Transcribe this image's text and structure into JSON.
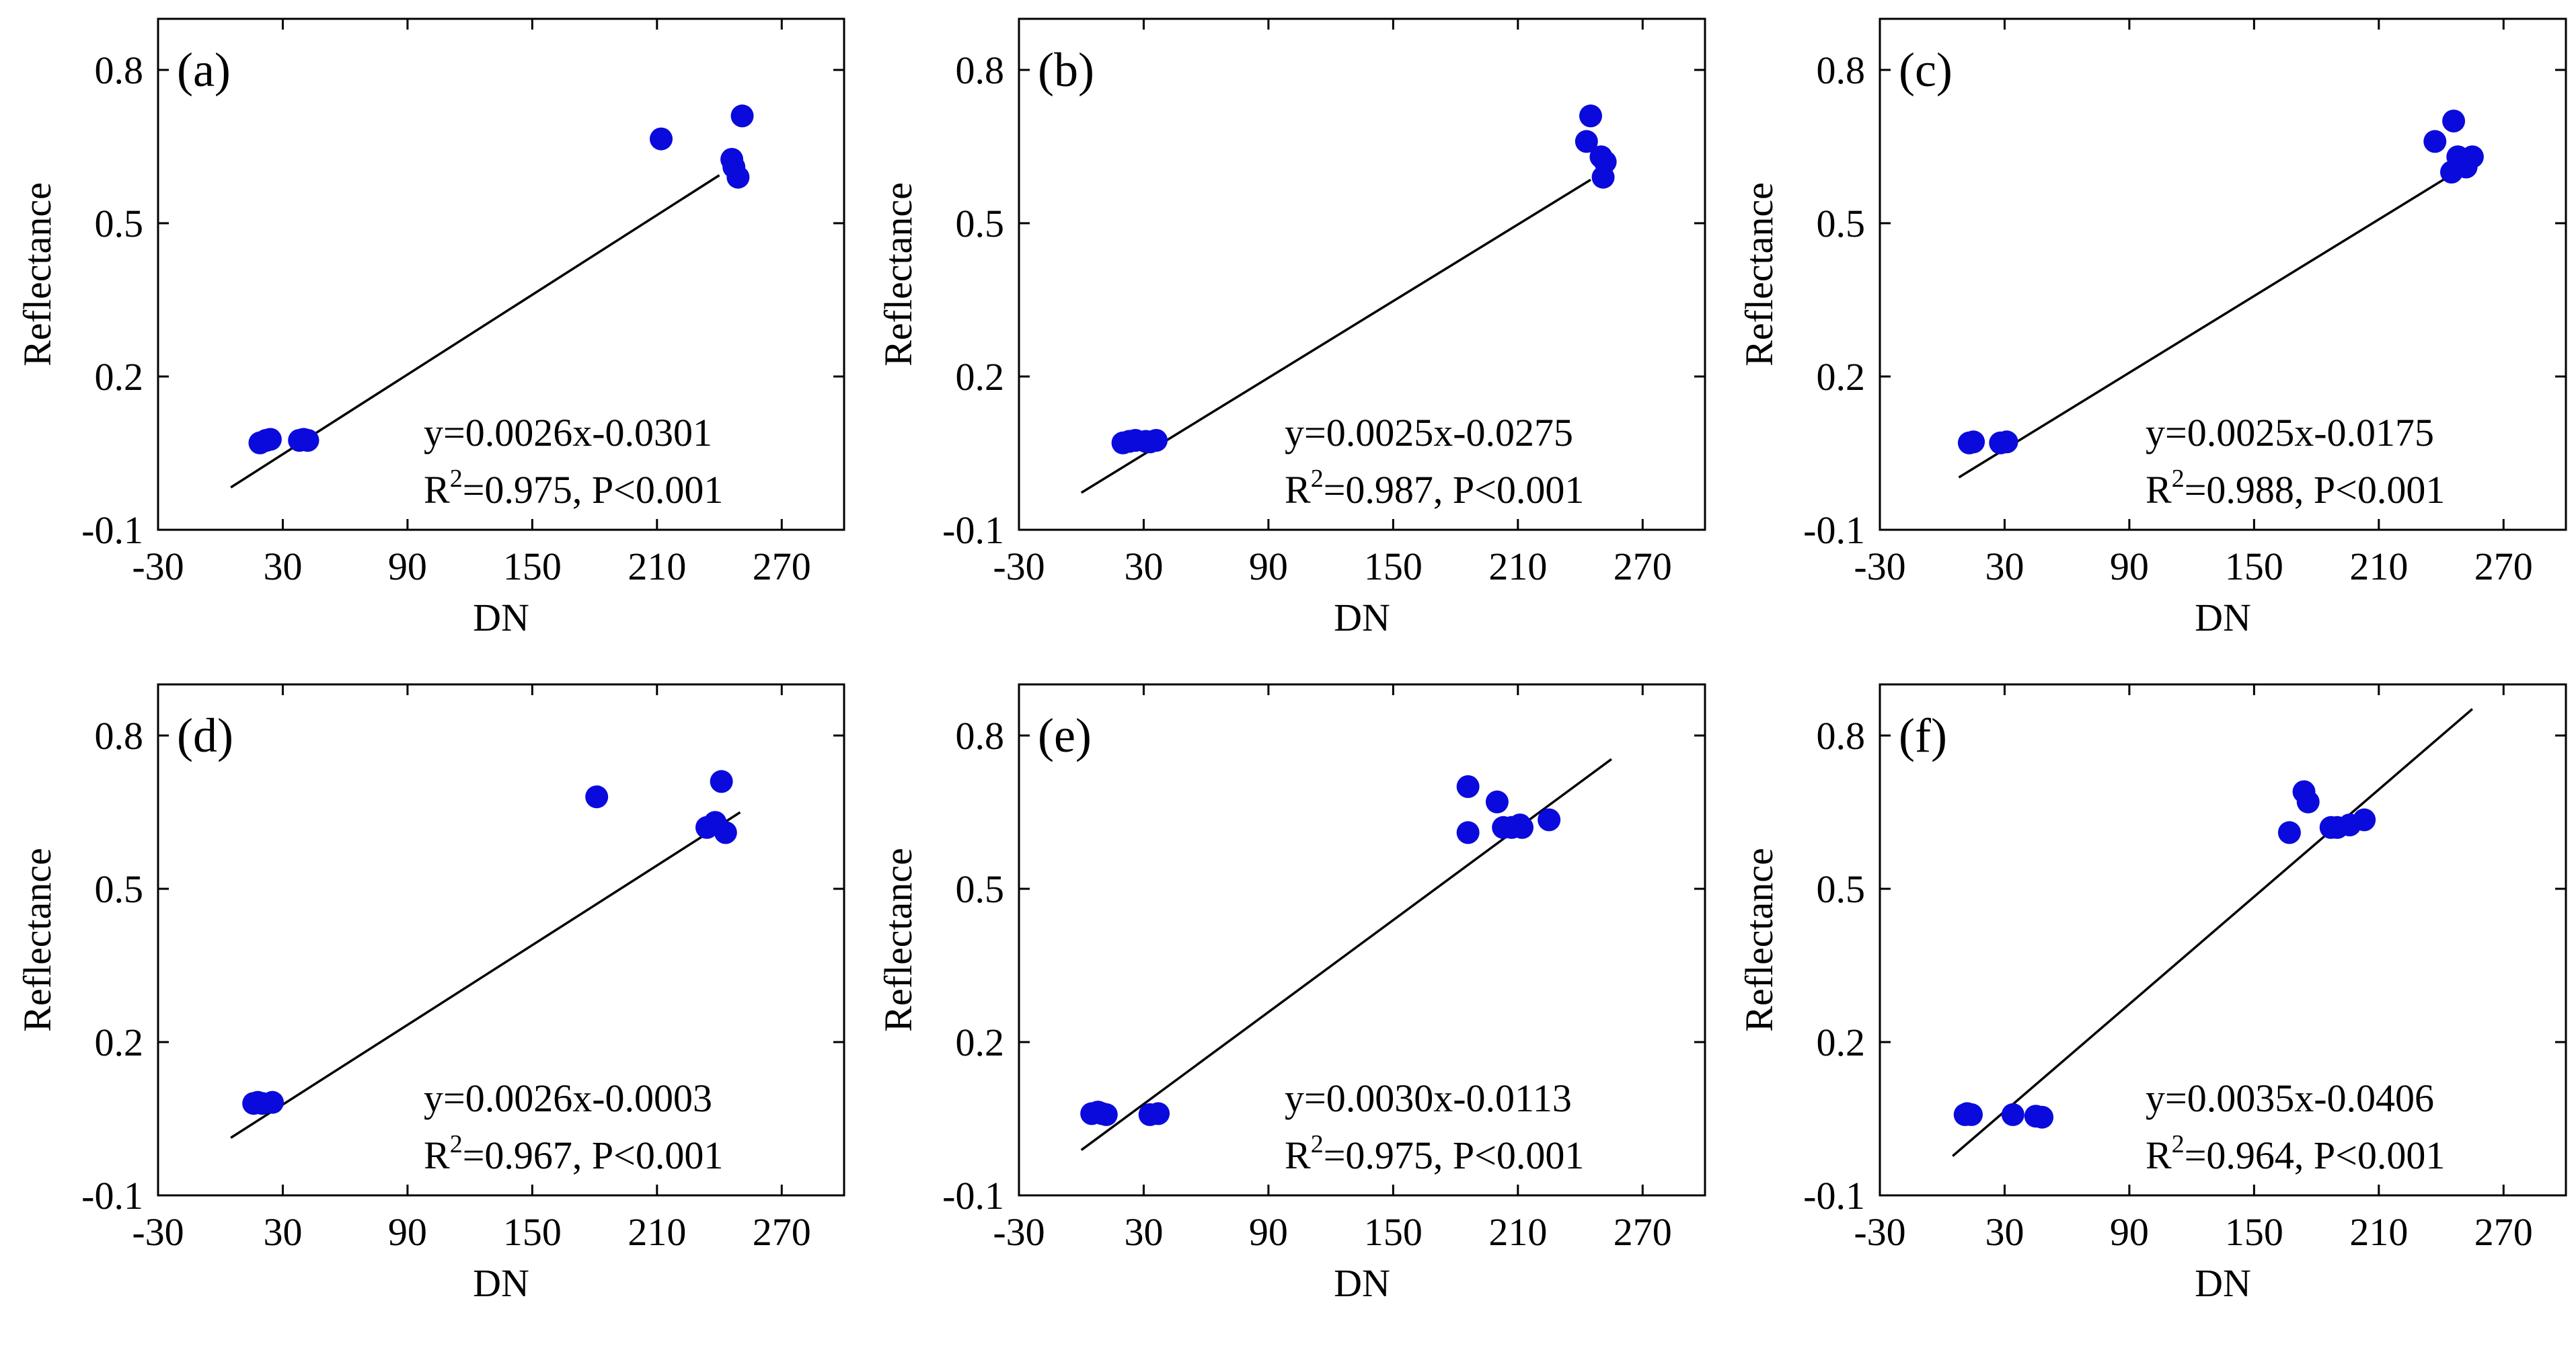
{
  "figure": {
    "background": "#ffffff"
  },
  "chart_data": [
    {
      "type": "scatter",
      "panel_label": "(a)",
      "xlabel": "DN",
      "ylabel": "Reflectance",
      "xlim": [
        -30,
        300
      ],
      "ylim": [
        -0.1,
        0.9
      ],
      "xticks": [
        "-30",
        "30",
        "90",
        "150",
        "210",
        "270"
      ],
      "yticks": [
        "-0.1",
        "0.2",
        "0.5",
        "0.8"
      ],
      "grid": false,
      "series": [
        {
          "marker_color": "#0a0adc",
          "x": [
            19,
            22,
            24,
            38,
            40,
            42,
            212,
            246,
            247,
            249,
            251
          ],
          "y": [
            0.07,
            0.075,
            0.077,
            0.075,
            0.077,
            0.075,
            0.665,
            0.625,
            0.61,
            0.59,
            0.71
          ]
        }
      ],
      "fit_line": {
        "slope": 0.0026,
        "intercept": -0.0301,
        "x_range": [
          5,
          240
        ],
        "color": "#000000"
      },
      "annotation": {
        "equation": "y=0.0026x-0.0301",
        "r2_prefix": "R",
        "r2_sup": "2",
        "r2_suffix": "=0.975, P<0.001"
      }
    },
    {
      "type": "scatter",
      "panel_label": "(b)",
      "xlabel": "DN",
      "ylabel": "Reflectance",
      "xlim": [
        -30,
        300
      ],
      "ylim": [
        -0.1,
        0.9
      ],
      "xticks": [
        "-30",
        "30",
        "90",
        "150",
        "210",
        "270"
      ],
      "yticks": [
        "-0.1",
        "0.2",
        "0.5",
        "0.8"
      ],
      "grid": false,
      "series": [
        {
          "marker_color": "#0a0adc",
          "x": [
            20,
            23,
            26,
            31,
            33,
            36,
            243,
            245,
            250,
            252,
            251
          ],
          "y": [
            0.07,
            0.073,
            0.075,
            0.073,
            0.072,
            0.075,
            0.66,
            0.71,
            0.63,
            0.62,
            0.59
          ]
        }
      ],
      "fit_line": {
        "slope": 0.0025,
        "intercept": -0.0275,
        "x_range": [
          0,
          245
        ],
        "color": "#000000"
      },
      "annotation": {
        "equation": "y=0.0025x-0.0275",
        "r2_prefix": "R",
        "r2_sup": "2",
        "r2_suffix": "=0.987, P<0.001"
      }
    },
    {
      "type": "scatter",
      "panel_label": "(c)",
      "xlabel": "DN",
      "ylabel": "Reflectance",
      "xlim": [
        -30,
        300
      ],
      "ylim": [
        -0.1,
        0.9
      ],
      "xticks": [
        "-30",
        "30",
        "90",
        "150",
        "210",
        "270"
      ],
      "yticks": [
        "-0.1",
        "0.2",
        "0.5",
        "0.8"
      ],
      "grid": false,
      "series": [
        {
          "marker_color": "#0a0adc",
          "x": [
            13,
            15,
            28,
            31,
            237,
            246,
            245,
            248,
            252,
            255
          ],
          "y": [
            0.07,
            0.072,
            0.07,
            0.072,
            0.66,
            0.7,
            0.6,
            0.63,
            0.61,
            0.63
          ]
        }
      ],
      "fit_line": {
        "slope": 0.0025,
        "intercept": -0.0175,
        "x_range": [
          8,
          250
        ],
        "color": "#000000"
      },
      "annotation": {
        "equation": "y=0.0025x-0.0175",
        "r2_prefix": "R",
        "r2_sup": "2",
        "r2_suffix": "=0.988, P<0.001"
      }
    },
    {
      "type": "scatter",
      "panel_label": "(d)",
      "xlabel": "DN",
      "ylabel": "Reflectance",
      "xlim": [
        -30,
        300
      ],
      "ylim": [
        -0.1,
        0.9
      ],
      "xticks": [
        "-30",
        "30",
        "90",
        "150",
        "210",
        "270"
      ],
      "yticks": [
        "-0.1",
        "0.2",
        "0.5",
        "0.8"
      ],
      "grid": false,
      "series": [
        {
          "marker_color": "#0a0adc",
          "x": [
            16,
            18,
            20,
            25,
            181,
            234,
            238,
            241,
            243
          ],
          "y": [
            0.08,
            0.082,
            0.08,
            0.082,
            0.68,
            0.62,
            0.63,
            0.71,
            0.61
          ]
        }
      ],
      "fit_line": {
        "slope": 0.0026,
        "intercept": -0.0003,
        "x_range": [
          5,
          250
        ],
        "color": "#000000"
      },
      "annotation": {
        "equation": "y=0.0026x-0.0003",
        "r2_prefix": "R",
        "r2_sup": "2",
        "r2_suffix": "=0.967, P<0.001"
      }
    },
    {
      "type": "scatter",
      "panel_label": "(e)",
      "xlabel": "DN",
      "ylabel": "Reflectance",
      "xlim": [
        -30,
        300
      ],
      "ylim": [
        -0.1,
        0.9
      ],
      "xticks": [
        "-30",
        "30",
        "90",
        "150",
        "210",
        "270"
      ],
      "yticks": [
        "-0.1",
        "0.2",
        "0.5",
        "0.8"
      ],
      "grid": false,
      "series": [
        {
          "marker_color": "#0a0adc",
          "x": [
            5,
            8,
            10,
            12,
            33,
            37,
            186,
            186,
            200,
            203,
            207,
            211,
            212,
            225
          ],
          "y": [
            0.06,
            0.063,
            0.06,
            0.058,
            0.058,
            0.06,
            0.7,
            0.61,
            0.67,
            0.62,
            0.62,
            0.625,
            0.62,
            0.635
          ]
        }
      ],
      "fit_line": {
        "slope": 0.003,
        "intercept": -0.0113,
        "x_range": [
          0,
          255
        ],
        "color": "#000000"
      },
      "annotation": {
        "equation": "y=0.0030x-0.0113",
        "r2_prefix": "R",
        "r2_sup": "2",
        "r2_suffix": "=0.975, P<0.001"
      }
    },
    {
      "type": "scatter",
      "panel_label": "(f)",
      "xlabel": "DN",
      "ylabel": "Reflectance",
      "xlim": [
        -30,
        300
      ],
      "ylim": [
        -0.1,
        0.9
      ],
      "xticks": [
        "-30",
        "30",
        "90",
        "150",
        "210",
        "270"
      ],
      "yticks": [
        "-0.1",
        "0.2",
        "0.5",
        "0.8"
      ],
      "grid": false,
      "series": [
        {
          "marker_color": "#0a0adc",
          "x": [
            11,
            12,
            14,
            34,
            45,
            48,
            167,
            174,
            176,
            187,
            190,
            196,
            203
          ],
          "y": [
            0.058,
            0.06,
            0.058,
            0.058,
            0.055,
            0.053,
            0.61,
            0.69,
            0.67,
            0.62,
            0.62,
            0.625,
            0.635
          ]
        }
      ],
      "fit_line": {
        "slope": 0.0035,
        "intercept": -0.0406,
        "x_range": [
          5,
          255
        ],
        "color": "#000000"
      },
      "annotation": {
        "equation": "y=0.0035x-0.0406",
        "r2_prefix": "R",
        "r2_sup": "2",
        "r2_suffix": "=0.964, P<0.001"
      }
    }
  ]
}
